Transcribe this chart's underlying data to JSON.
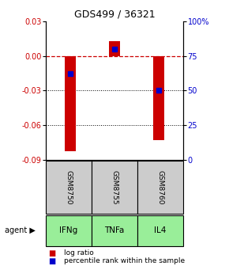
{
  "title": "GDS499 / 36321",
  "samples": [
    "GSM8750",
    "GSM8755",
    "GSM8760"
  ],
  "agents": [
    "IFNg",
    "TNFa",
    "IL4"
  ],
  "log_ratios": [
    -0.083,
    0.013,
    -0.073
  ],
  "percentile_ranks": [
    0.62,
    0.8,
    0.5
  ],
  "ylim_left": [
    -0.09,
    0.03
  ],
  "ylim_right": [
    0.0,
    1.0
  ],
  "yticks_left": [
    -0.09,
    -0.06,
    -0.03,
    0.0,
    0.03
  ],
  "yticks_right_vals": [
    0.0,
    0.25,
    0.5,
    0.75,
    1.0
  ],
  "yticks_right_labels": [
    "0",
    "25",
    "50",
    "75",
    "100%"
  ],
  "bar_color": "#cc0000",
  "dot_color": "#0000cc",
  "zero_line_color": "#cc0000",
  "grid_color": "#000000",
  "agent_bg_color": "#99ee99",
  "sample_bg_color": "#cccccc",
  "title_fontsize": 9,
  "tick_fontsize": 7,
  "bar_width": 0.25,
  "dot_size": 18,
  "figsize": [
    2.9,
    3.36
  ],
  "dpi": 100
}
